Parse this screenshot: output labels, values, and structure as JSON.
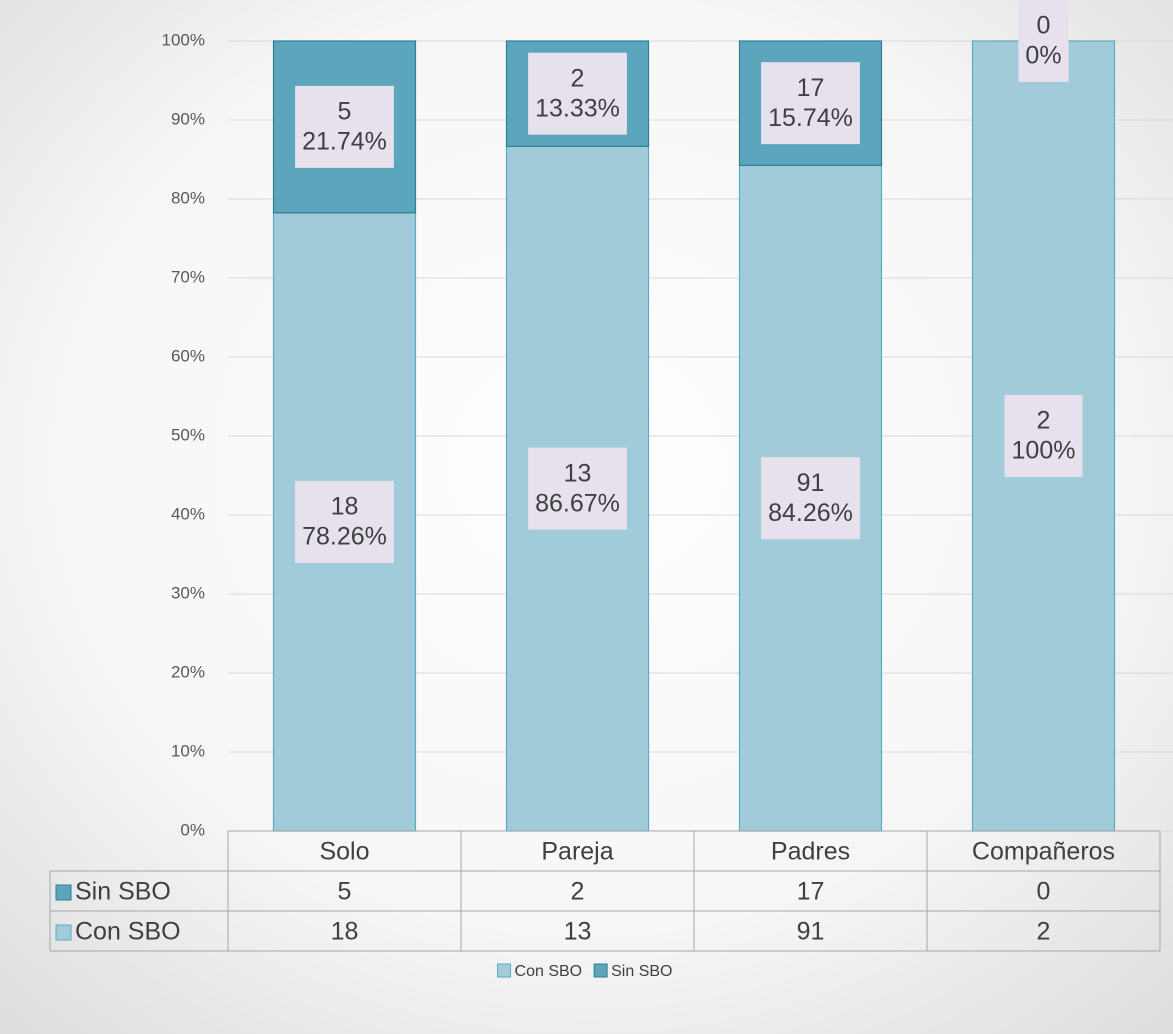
{
  "chart_data": {
    "type": "stacked_percent_bar",
    "categories": [
      "Solo",
      "Pareja",
      "Padres",
      "Compañeros"
    ],
    "series": [
      {
        "name": "Con SBO",
        "color": "#a2cbda",
        "counts": [
          18,
          13,
          91,
          2
        ],
        "values": [
          78.26,
          86.67,
          84.26,
          100
        ],
        "value_labels": [
          "78.26%",
          "86.67%",
          "84.26%",
          "100%"
        ]
      },
      {
        "name": "Sin SBO",
        "color": "#5ba6bc",
        "counts": [
          5,
          2,
          17,
          0
        ],
        "values": [
          21.74,
          13.33,
          15.74,
          0
        ],
        "value_labels": [
          "21.74%",
          "13.33%",
          "15.74%",
          "0%"
        ]
      }
    ],
    "ylim": [
      0,
      100
    ],
    "yticks": [
      {
        "value": 0,
        "label": "0%"
      },
      {
        "value": 10,
        "label": "10%"
      },
      {
        "value": 20,
        "label": "20%"
      },
      {
        "value": 30,
        "label": "30%"
      },
      {
        "value": 40,
        "label": "40%"
      },
      {
        "value": 50,
        "label": "50%"
      },
      {
        "value": 60,
        "label": "60%"
      },
      {
        "value": 70,
        "label": "70%"
      },
      {
        "value": 80,
        "label": "80%"
      },
      {
        "value": 90,
        "label": "90%"
      },
      {
        "value": 100,
        "label": "100%"
      }
    ],
    "grid": true,
    "legend": "bottom",
    "data_table": true
  }
}
